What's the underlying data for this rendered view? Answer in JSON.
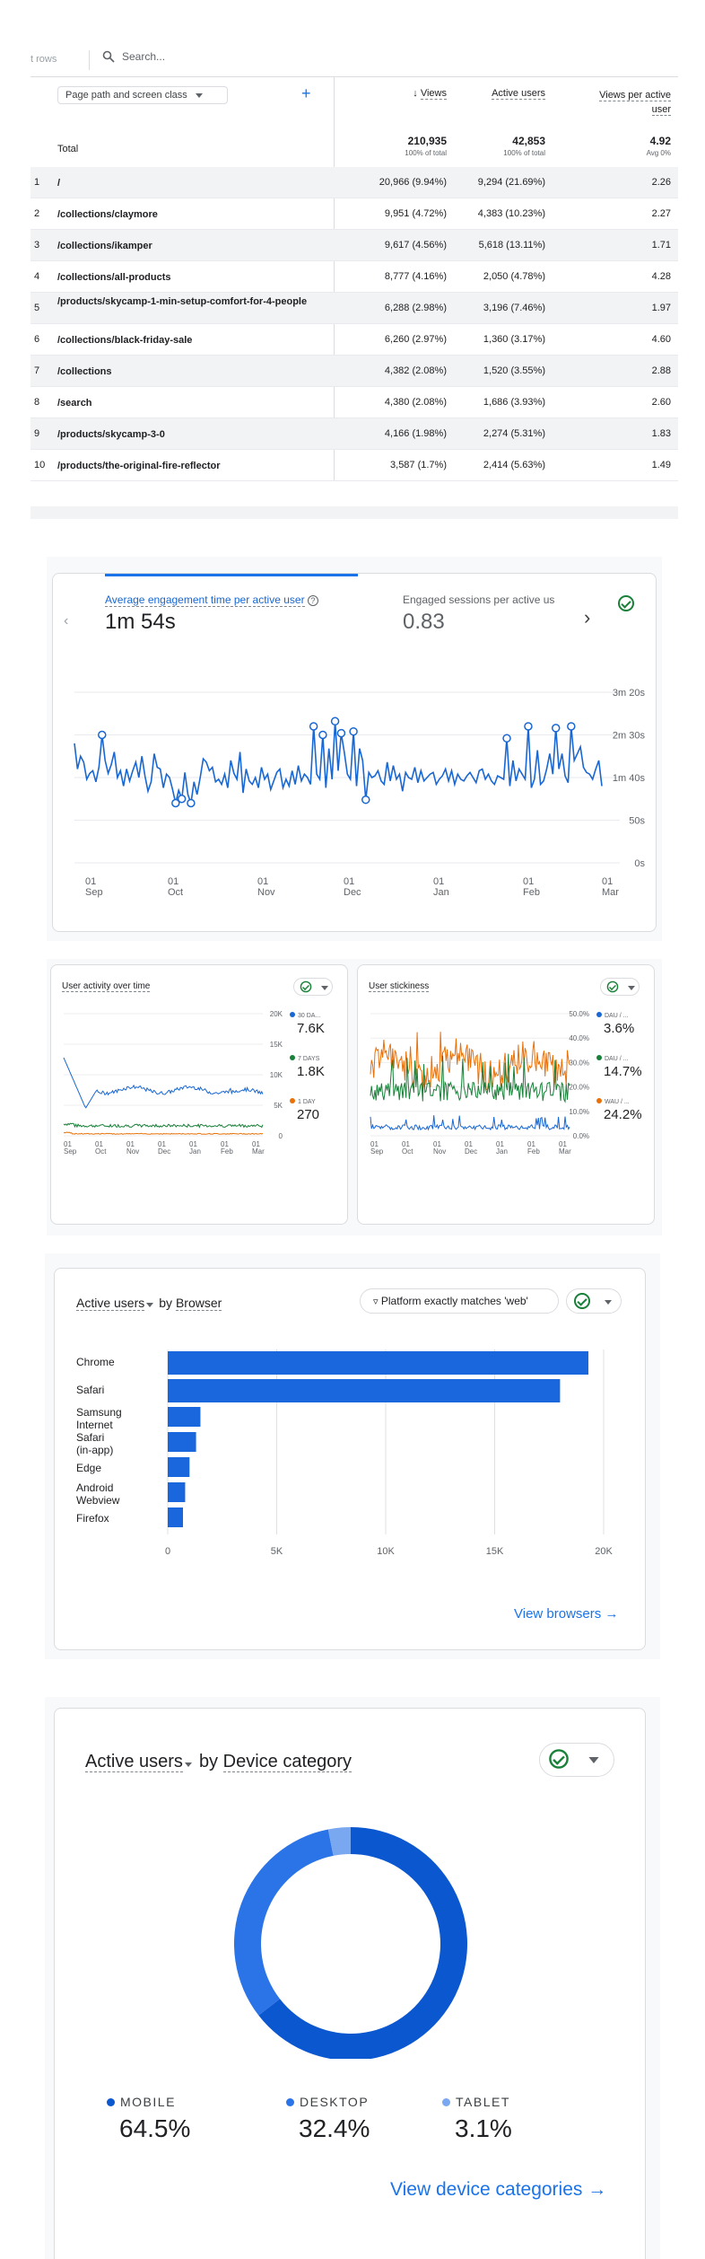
{
  "table": {
    "rows_label": "t rows",
    "search_placeholder": "Search...",
    "dimension_label": "Page path and screen class",
    "col_views": "Views",
    "col_active_users": "Active users",
    "col_views_per_user": "Views per active user",
    "total_label": "Total",
    "total": {
      "views": "210,935",
      "views_sub": "100% of total",
      "users": "42,853",
      "users_sub": "100% of total",
      "vpu": "4.92",
      "vpu_sub": "Avg 0%"
    },
    "rows": [
      {
        "n": "1",
        "path": "/",
        "views": "20,966 (9.94%)",
        "users": "9,294 (21.69%)",
        "vpu": "2.26"
      },
      {
        "n": "2",
        "path": "/collections/claymore",
        "views": "9,951 (4.72%)",
        "users": "4,383 (10.23%)",
        "vpu": "2.27"
      },
      {
        "n": "3",
        "path": "/collections/ikamper",
        "views": "9,617 (4.56%)",
        "users": "5,618 (13.11%)",
        "vpu": "1.71"
      },
      {
        "n": "4",
        "path": "/collections/all-products",
        "views": "8,777 (4.16%)",
        "users": "2,050 (4.78%)",
        "vpu": "4.28"
      },
      {
        "n": "5",
        "path": "/products/skycamp-1-min-setup-comfort-for-4-people",
        "views": "6,288 (2.98%)",
        "users": "3,196 (7.46%)",
        "vpu": "1.97"
      },
      {
        "n": "6",
        "path": "/collections/black-friday-sale",
        "views": "6,260 (2.97%)",
        "users": "1,360 (3.17%)",
        "vpu": "4.60"
      },
      {
        "n": "7",
        "path": "/collections",
        "views": "4,382 (2.08%)",
        "users": "1,520 (3.55%)",
        "vpu": "2.88"
      },
      {
        "n": "8",
        "path": "/search",
        "views": "4,380 (2.08%)",
        "users": "1,686 (3.93%)",
        "vpu": "2.60"
      },
      {
        "n": "9",
        "path": "/products/skycamp-3-0",
        "views": "4,166 (1.98%)",
        "users": "2,274 (5.31%)",
        "vpu": "1.83"
      },
      {
        "n": "10",
        "path": "/products/the-original-fire-reflector",
        "views": "3,587 (1.7%)",
        "users": "2,414 (5.63%)",
        "vpu": "1.49"
      }
    ]
  },
  "engagement": {
    "metric1_label": "Average engagement time per active user",
    "metric1_value": "1m 54s",
    "metric2_label": "Engaged sessions per active us",
    "metric2_value": "0.83",
    "yticks": [
      "3m 20s",
      "2m 30s",
      "1m 40s",
      "50s",
      "0s"
    ],
    "xticks": [
      {
        "d": "01",
        "m": "Sep"
      },
      {
        "d": "01",
        "m": "Oct"
      },
      {
        "d": "01",
        "m": "Nov"
      },
      {
        "d": "01",
        "m": "Dec"
      },
      {
        "d": "01",
        "m": "Jan"
      },
      {
        "d": "01",
        "m": "Feb"
      },
      {
        "d": "01",
        "m": "Mar"
      }
    ]
  },
  "activity": {
    "title": "User activity over time",
    "yticks": [
      "20K",
      "15K",
      "10K",
      "5K",
      "0"
    ],
    "legend": [
      {
        "label": "30 DA...",
        "value": "7.6K",
        "color": "#1967d2"
      },
      {
        "label": "7 DAYS",
        "value": "1.8K",
        "color": "#188038"
      },
      {
        "label": "1 DAY",
        "value": "270",
        "color": "#e8710a"
      }
    ],
    "xticks": [
      "01 Sep",
      "01 Oct",
      "01 Nov",
      "01 Dec",
      "01 Jan",
      "01 Feb",
      "01 Mar"
    ]
  },
  "stickiness": {
    "title": "User stickiness",
    "yticks": [
      "50.0%",
      "40.0%",
      "30.0%",
      "20.0%",
      "10.0%",
      "0.0%"
    ],
    "legend": [
      {
        "label": "DAU / ...",
        "value": "3.6%",
        "color": "#1967d2"
      },
      {
        "label": "DAU / ...",
        "value": "14.7%",
        "color": "#188038"
      },
      {
        "label": "WAU / ...",
        "value": "24.2%",
        "color": "#e8710a"
      }
    ],
    "xticks": [
      "01 Sep",
      "01 Oct",
      "01 Nov",
      "01 Dec",
      "01 Jan",
      "01 Feb",
      "01 Mar"
    ]
  },
  "browser": {
    "metric": "Active users",
    "by": "by",
    "dimension": "Browser",
    "filter": "Platform exactly matches 'web'",
    "link": "View browsers"
  },
  "device": {
    "metric": "Active users",
    "by": "by",
    "dimension": "Device category",
    "items": [
      {
        "label": "MOBILE",
        "value": "64.5%",
        "color": "#0b57d0"
      },
      {
        "label": "DESKTOP",
        "value": "32.4%",
        "color": "#2a74e8"
      },
      {
        "label": "TABLET",
        "value": "3.1%",
        "color": "#7aa8f0"
      }
    ],
    "link": "View device categories"
  },
  "chart_data": [
    {
      "type": "line",
      "title": "Average engagement time per active user",
      "x_range": [
        "Sep 1",
        "Mar 5"
      ],
      "yticks": [
        "3m 20s",
        "2m 30s",
        "1m 40s",
        "50s",
        "0s"
      ],
      "ylim_seconds": [
        0,
        200
      ],
      "series": [
        {
          "values_seconds": [
            140,
            110,
            125,
            118,
            98,
            105,
            108,
            95,
            112,
            150,
            120,
            105,
            115,
            130,
            100,
            108,
            90,
            110,
            96,
            108,
            118,
            100,
            125,
            102,
            84,
            95,
            128,
            112,
            110,
            88,
            104,
            100,
            86,
            70,
            85,
            75,
            106,
            80,
            70,
            95,
            80,
            100,
            122,
            118,
            108,
            112,
            95,
            98,
            92,
            104,
            88,
            120,
            105,
            98,
            130,
            82,
            110,
            96,
            92,
            100,
            88,
            112,
            98,
            104,
            86,
            96,
            106,
            110,
            88,
            98,
            90,
            108,
            92,
            114,
            96,
            104,
            100,
            92,
            160,
            104,
            98,
            150,
            88,
            134,
            98,
            166,
            108,
            152,
            130,
            104,
            98,
            154,
            90,
            134,
            120,
            74,
            106,
            100,
            102,
            108,
            96,
            92,
            118,
            96,
            114,
            98,
            104,
            84,
            106,
            100,
            98,
            112,
            94,
            108,
            96,
            100,
            104,
            106,
            92,
            98,
            102,
            110,
            96,
            108,
            92,
            104,
            98,
            96,
            102,
            106,
            100,
            94,
            108,
            110,
            98,
            104,
            96,
            92,
            102,
            100,
            98,
            146,
            90,
            120,
            96,
            110,
            104,
            98,
            160,
            88,
            98,
            132,
            92,
            96,
            110,
            128,
            104,
            158,
            110,
            128,
            102,
            94,
            160,
            120,
            128,
            136,
            112,
            106,
            104,
            98,
            110,
            120,
            90
          ]
        }
      ]
    },
    {
      "type": "line",
      "title": "User activity over time",
      "yticks": [
        "20K",
        "15K",
        "10K",
        "5K",
        "0"
      ],
      "ylim": [
        0,
        20000
      ],
      "series": [
        {
          "name": "30 DAYS",
          "last": "7.6K"
        },
        {
          "name": "7 DAYS",
          "last": "1.8K"
        },
        {
          "name": "1 DAY",
          "last": "270"
        }
      ]
    },
    {
      "type": "line",
      "title": "User stickiness",
      "yticks": [
        "50.0%",
        "40.0%",
        "30.0%",
        "20.0%",
        "10.0%",
        "0.0%"
      ],
      "ylim": [
        0,
        50
      ],
      "series": [
        {
          "name": "DAU / MAU",
          "last": "3.6%"
        },
        {
          "name": "DAU / WAU",
          "last": "14.7%"
        },
        {
          "name": "WAU / MAU",
          "last": "24.2%"
        }
      ]
    },
    {
      "type": "bar",
      "title": "Active users by Browser",
      "categories": [
        "Chrome",
        "Safari",
        "Samsung Internet",
        "Safari (in-app)",
        "Edge",
        "Android Webview",
        "Firefox"
      ],
      "values": [
        19300,
        18000,
        1500,
        1300,
        1000,
        800,
        700
      ],
      "xticks": [
        "0",
        "5K",
        "10K",
        "15K",
        "20K"
      ],
      "xlim": [
        0,
        20000
      ]
    },
    {
      "type": "pie",
      "title": "Active users by Device category",
      "categories": [
        "MOBILE",
        "DESKTOP",
        "TABLET"
      ],
      "values": [
        64.5,
        32.4,
        3.1
      ]
    }
  ]
}
